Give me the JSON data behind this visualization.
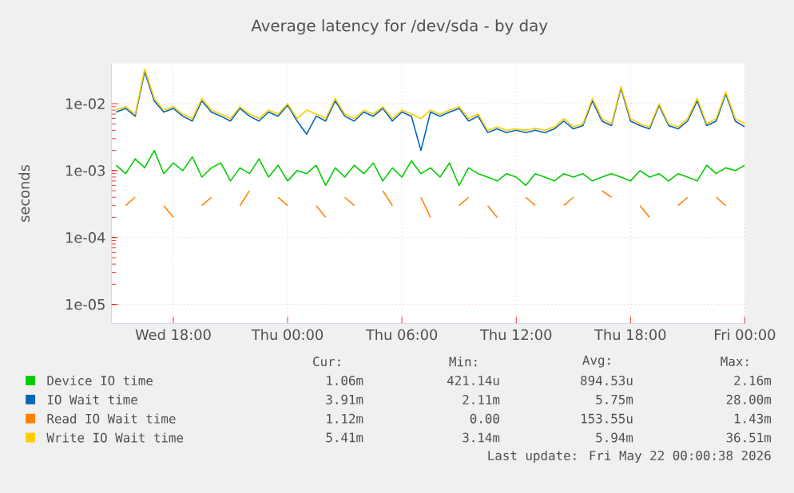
{
  "chart_data": {
    "type": "line",
    "title": "Average latency for /dev/sda - by day",
    "ylabel": "seconds",
    "log": "y",
    "grid": true,
    "legend": "bottom",
    "line_style": "solid",
    "xlim": [
      "2026-05-20T14:45",
      "2026-05-22T00:00"
    ],
    "ylim": [
      5.2e-06,
      0.04
    ],
    "xticks": [
      {
        "value": "2026-05-20T18:00",
        "label": "Wed 18:00"
      },
      {
        "value": "2026-05-21T00:00",
        "label": "Thu 00:00"
      },
      {
        "value": "2026-05-21T06:00",
        "label": "Thu 06:00"
      },
      {
        "value": "2026-05-21T12:00",
        "label": "Thu 12:00"
      },
      {
        "value": "2026-05-21T18:00",
        "label": "Thu 18:00"
      },
      {
        "value": "2026-05-22T00:00",
        "label": "Fri 00:00"
      }
    ],
    "yticks": [
      {
        "value": 1e-05,
        "label": "1e-05"
      },
      {
        "value": 0.0001,
        "label": "1e-04"
      },
      {
        "value": 0.001,
        "label": "1e-03"
      },
      {
        "value": 0.01,
        "label": "1e-02"
      }
    ],
    "x": [
      "2026-05-20T15:00",
      "2026-05-20T15:30",
      "2026-05-20T16:00",
      "2026-05-20T16:30",
      "2026-05-20T17:00",
      "2026-05-20T17:30",
      "2026-05-20T18:00",
      "2026-05-20T18:30",
      "2026-05-20T19:00",
      "2026-05-20T19:30",
      "2026-05-20T20:00",
      "2026-05-20T20:30",
      "2026-05-20T21:00",
      "2026-05-20T21:30",
      "2026-05-20T22:00",
      "2026-05-20T22:30",
      "2026-05-20T23:00",
      "2026-05-20T23:30",
      "2026-05-21T00:00",
      "2026-05-21T00:30",
      "2026-05-21T01:00",
      "2026-05-21T01:30",
      "2026-05-21T02:00",
      "2026-05-21T02:30",
      "2026-05-21T03:00",
      "2026-05-21T03:30",
      "2026-05-21T04:00",
      "2026-05-21T04:30",
      "2026-05-21T05:00",
      "2026-05-21T05:30",
      "2026-05-21T06:00",
      "2026-05-21T06:30",
      "2026-05-21T07:00",
      "2026-05-21T07:30",
      "2026-05-21T08:00",
      "2026-05-21T08:30",
      "2026-05-21T09:00",
      "2026-05-21T09:30",
      "2026-05-21T10:00",
      "2026-05-21T10:30",
      "2026-05-21T11:00",
      "2026-05-21T11:30",
      "2026-05-21T12:00",
      "2026-05-21T12:30",
      "2026-05-21T13:00",
      "2026-05-21T13:30",
      "2026-05-21T14:00",
      "2026-05-21T14:30",
      "2026-05-21T15:00",
      "2026-05-21T15:30",
      "2026-05-21T16:00",
      "2026-05-21T16:30",
      "2026-05-21T17:00",
      "2026-05-21T17:30",
      "2026-05-21T18:00",
      "2026-05-21T18:30",
      "2026-05-21T19:00",
      "2026-05-21T19:30",
      "2026-05-21T20:00",
      "2026-05-21T20:30",
      "2026-05-21T21:00",
      "2026-05-21T21:30",
      "2026-05-21T22:00",
      "2026-05-21T22:30",
      "2026-05-21T23:00",
      "2026-05-21T23:30",
      "2026-05-22T00:00"
    ],
    "series": [
      {
        "name": "Device IO time",
        "color": "#00cc00",
        "values": [
          0.0012,
          0.0009,
          0.0015,
          0.0011,
          0.002,
          0.0009,
          0.0013,
          0.001,
          0.0016,
          0.0008,
          0.0011,
          0.0013,
          0.0007,
          0.0011,
          0.0009,
          0.0015,
          0.0008,
          0.0012,
          0.0007,
          0.001,
          0.0009,
          0.0012,
          0.0006,
          0.0011,
          0.0008,
          0.0012,
          0.0009,
          0.0013,
          0.0007,
          0.0011,
          0.0008,
          0.0014,
          0.0009,
          0.0011,
          0.0008,
          0.0013,
          0.0006,
          0.0011,
          0.0009,
          0.0008,
          0.0007,
          0.0009,
          0.0008,
          0.0006,
          0.0009,
          0.0008,
          0.0007,
          0.0009,
          0.0008,
          0.0009,
          0.0007,
          0.0008,
          0.0009,
          0.0008,
          0.0007,
          0.001,
          0.0008,
          0.0009,
          0.0007,
          0.0009,
          0.0008,
          0.0007,
          0.0012,
          0.0009,
          0.0011,
          0.001,
          0.0012
        ]
      },
      {
        "name": "IO Wait time",
        "color": "#0066b3",
        "values": [
          0.0075,
          0.0085,
          0.0065,
          0.03,
          0.011,
          0.0075,
          0.0085,
          0.0065,
          0.0055,
          0.011,
          0.0075,
          0.0065,
          0.0055,
          0.0085,
          0.0065,
          0.0055,
          0.0075,
          0.0065,
          0.0095,
          0.0055,
          0.0035,
          0.0065,
          0.0055,
          0.011,
          0.0065,
          0.0055,
          0.0075,
          0.0065,
          0.0085,
          0.0055,
          0.0075,
          0.0065,
          0.002,
          0.0075,
          0.0065,
          0.0075,
          0.0085,
          0.0055,
          0.0065,
          0.0037,
          0.0042,
          0.0037,
          0.004,
          0.0037,
          0.004,
          0.0037,
          0.0042,
          0.0055,
          0.0042,
          0.0047,
          0.011,
          0.0055,
          0.0047,
          0.017,
          0.0055,
          0.0047,
          0.0042,
          0.0095,
          0.0047,
          0.0042,
          0.0055,
          0.011,
          0.0047,
          0.0055,
          0.014,
          0.0055,
          0.0045
        ]
      },
      {
        "name": "Read IO Wait time",
        "color": "#ff8000",
        "values": [
          null,
          0.0003,
          0.0004,
          null,
          null,
          0.0003,
          0.0002,
          null,
          null,
          0.0003,
          0.0004,
          null,
          null,
          0.0003,
          0.0005,
          null,
          null,
          0.0004,
          0.0003,
          null,
          null,
          0.0003,
          0.0002,
          null,
          0.0004,
          0.0003,
          null,
          null,
          0.0005,
          0.0003,
          null,
          null,
          0.0004,
          0.0002,
          null,
          null,
          0.0003,
          0.0004,
          null,
          0.0003,
          0.0002,
          null,
          null,
          0.0004,
          0.0003,
          null,
          null,
          0.0003,
          0.0004,
          null,
          null,
          0.0005,
          0.0004,
          null,
          null,
          0.0003,
          0.0002,
          null,
          null,
          0.0003,
          0.0004,
          null,
          null,
          0.0004,
          0.0003,
          null,
          null
        ]
      },
      {
        "name": "Write IO Wait time",
        "color": "#ffcc00",
        "values": [
          0.008,
          0.009,
          0.007,
          0.033,
          0.012,
          0.008,
          0.009,
          0.007,
          0.006,
          0.012,
          0.008,
          0.007,
          0.006,
          0.009,
          0.007,
          0.006,
          0.008,
          0.007,
          0.01,
          0.006,
          0.008,
          0.007,
          0.006,
          0.012,
          0.007,
          0.006,
          0.008,
          0.007,
          0.009,
          0.006,
          0.008,
          0.007,
          0.006,
          0.008,
          0.007,
          0.008,
          0.009,
          0.006,
          0.007,
          0.004,
          0.0045,
          0.004,
          0.0042,
          0.004,
          0.0043,
          0.004,
          0.0045,
          0.006,
          0.0045,
          0.005,
          0.012,
          0.006,
          0.005,
          0.018,
          0.006,
          0.005,
          0.0045,
          0.01,
          0.005,
          0.0045,
          0.006,
          0.012,
          0.005,
          0.006,
          0.015,
          0.006,
          0.005
        ]
      }
    ],
    "annotations": [
      "Cur:",
      "Min:",
      "Avg:",
      "Max:",
      "1.06m",
      "421.14u",
      "894.53u",
      "2.16m",
      "3.91m",
      "2.11m",
      "5.75m",
      "28.00m",
      "1.12m",
      "0.00",
      "153.55u",
      "1.43m",
      "5.41m",
      "3.14m",
      "5.94m",
      "36.51m",
      "Last update: Fri May 22 00:00:38 2026"
    ]
  }
}
